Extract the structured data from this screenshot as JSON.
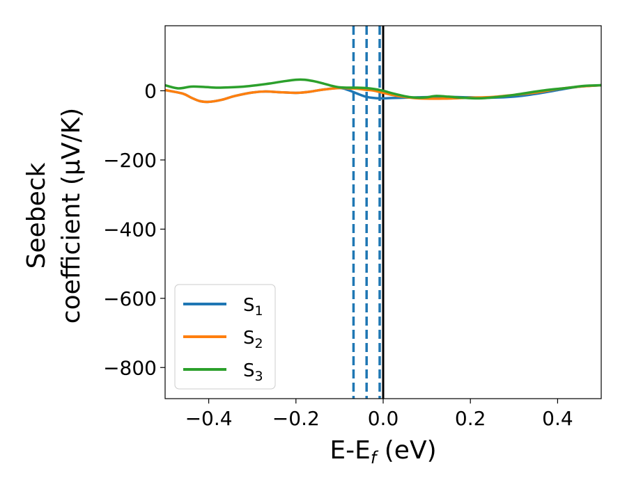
{
  "chart_data": {
    "type": "line",
    "xlabel": "E-E_f (eV)",
    "ylabel_line1": "Seebeck",
    "ylabel_line2": "coefficient  (μV/K)",
    "xlim": [
      -0.5,
      0.5
    ],
    "ylim": [
      -890,
      188
    ],
    "x_ticks": [
      {
        "value": -0.4,
        "label": "−0.4"
      },
      {
        "value": -0.2,
        "label": "−0.2"
      },
      {
        "value": 0.0,
        "label": "0.0"
      },
      {
        "value": 0.2,
        "label": "0.2"
      },
      {
        "value": 0.4,
        "label": "0.4"
      }
    ],
    "y_ticks": [
      {
        "value": 0,
        "label": "0"
      },
      {
        "value": -200,
        "label": "−200"
      },
      {
        "value": -400,
        "label": "−400"
      },
      {
        "value": -600,
        "label": "−600"
      },
      {
        "value": -800,
        "label": "−800"
      }
    ],
    "grid": false,
    "legend_position": "bottom-left",
    "series": [
      {
        "name": "S1",
        "label_main": "S",
        "label_sub": "1",
        "color": "#1f77b4",
        "x": [
          -0.5,
          -0.46,
          -0.44,
          -0.42,
          -0.4,
          -0.37,
          -0.34,
          -0.3,
          -0.27,
          -0.24,
          -0.2,
          -0.17,
          -0.14,
          -0.1,
          -0.08,
          -0.06,
          -0.04,
          -0.02,
          0.0,
          0.02,
          0.05,
          0.08,
          0.12,
          0.16,
          0.2,
          0.25,
          0.3,
          0.35,
          0.4,
          0.45,
          0.5
        ],
        "y": [
          2,
          -8,
          -20,
          -30,
          -32,
          -26,
          -15,
          -5,
          -2,
          -4,
          -6,
          -3,
          3,
          8,
          2,
          -8,
          -17,
          -21,
          -22,
          -21,
          -20,
          -19,
          -18,
          -18,
          -19,
          -20,
          -17,
          -9,
          2,
          12,
          16
        ]
      },
      {
        "name": "S2",
        "label_main": "S",
        "label_sub": "2",
        "color": "#ff7f0e",
        "x": [
          -0.5,
          -0.46,
          -0.44,
          -0.42,
          -0.4,
          -0.37,
          -0.34,
          -0.3,
          -0.27,
          -0.24,
          -0.2,
          -0.17,
          -0.14,
          -0.1,
          -0.08,
          -0.06,
          -0.04,
          -0.02,
          0.0,
          0.02,
          0.05,
          0.08,
          0.12,
          0.16,
          0.2,
          0.25,
          0.3,
          0.35,
          0.4,
          0.45,
          0.5
        ],
        "y": [
          2,
          -8,
          -20,
          -30,
          -32,
          -26,
          -15,
          -5,
          -2,
          -4,
          -6,
          -3,
          3,
          8,
          7,
          6,
          3,
          0,
          -6,
          -12,
          -18,
          -22,
          -23,
          -22,
          -20,
          -18,
          -12,
          -5,
          5,
          12,
          16
        ]
      },
      {
        "name": "S3",
        "label_main": "S",
        "label_sub": "3",
        "color": "#2ca02c",
        "x": [
          -0.5,
          -0.47,
          -0.44,
          -0.41,
          -0.38,
          -0.35,
          -0.32,
          -0.29,
          -0.26,
          -0.23,
          -0.2,
          -0.18,
          -0.16,
          -0.14,
          -0.12,
          -0.1,
          -0.08,
          -0.06,
          -0.04,
          -0.02,
          0.0,
          0.02,
          0.04,
          0.06,
          0.08,
          0.1,
          0.12,
          0.15,
          0.18,
          0.22,
          0.26,
          0.3,
          0.34,
          0.38,
          0.42,
          0.46,
          0.5
        ],
        "y": [
          16,
          7,
          12,
          11,
          9,
          10,
          12,
          16,
          21,
          27,
          32,
          32,
          28,
          22,
          15,
          10,
          9,
          9,
          8,
          5,
          0,
          -7,
          -13,
          -18,
          -20,
          -19,
          -15,
          -17,
          -20,
          -22,
          -18,
          -12,
          -4,
          3,
          8,
          14,
          16
        ]
      }
    ],
    "vertical_lines": [
      {
        "x": -0.068,
        "color": "#1f77b4",
        "style": "dashed"
      },
      {
        "x": -0.038,
        "color": "#1f77b4",
        "style": "dashed"
      },
      {
        "x": -0.008,
        "color": "#1f77b4",
        "style": "dashed"
      },
      {
        "x": 0.0,
        "color": "#000000",
        "style": "solid"
      }
    ]
  }
}
